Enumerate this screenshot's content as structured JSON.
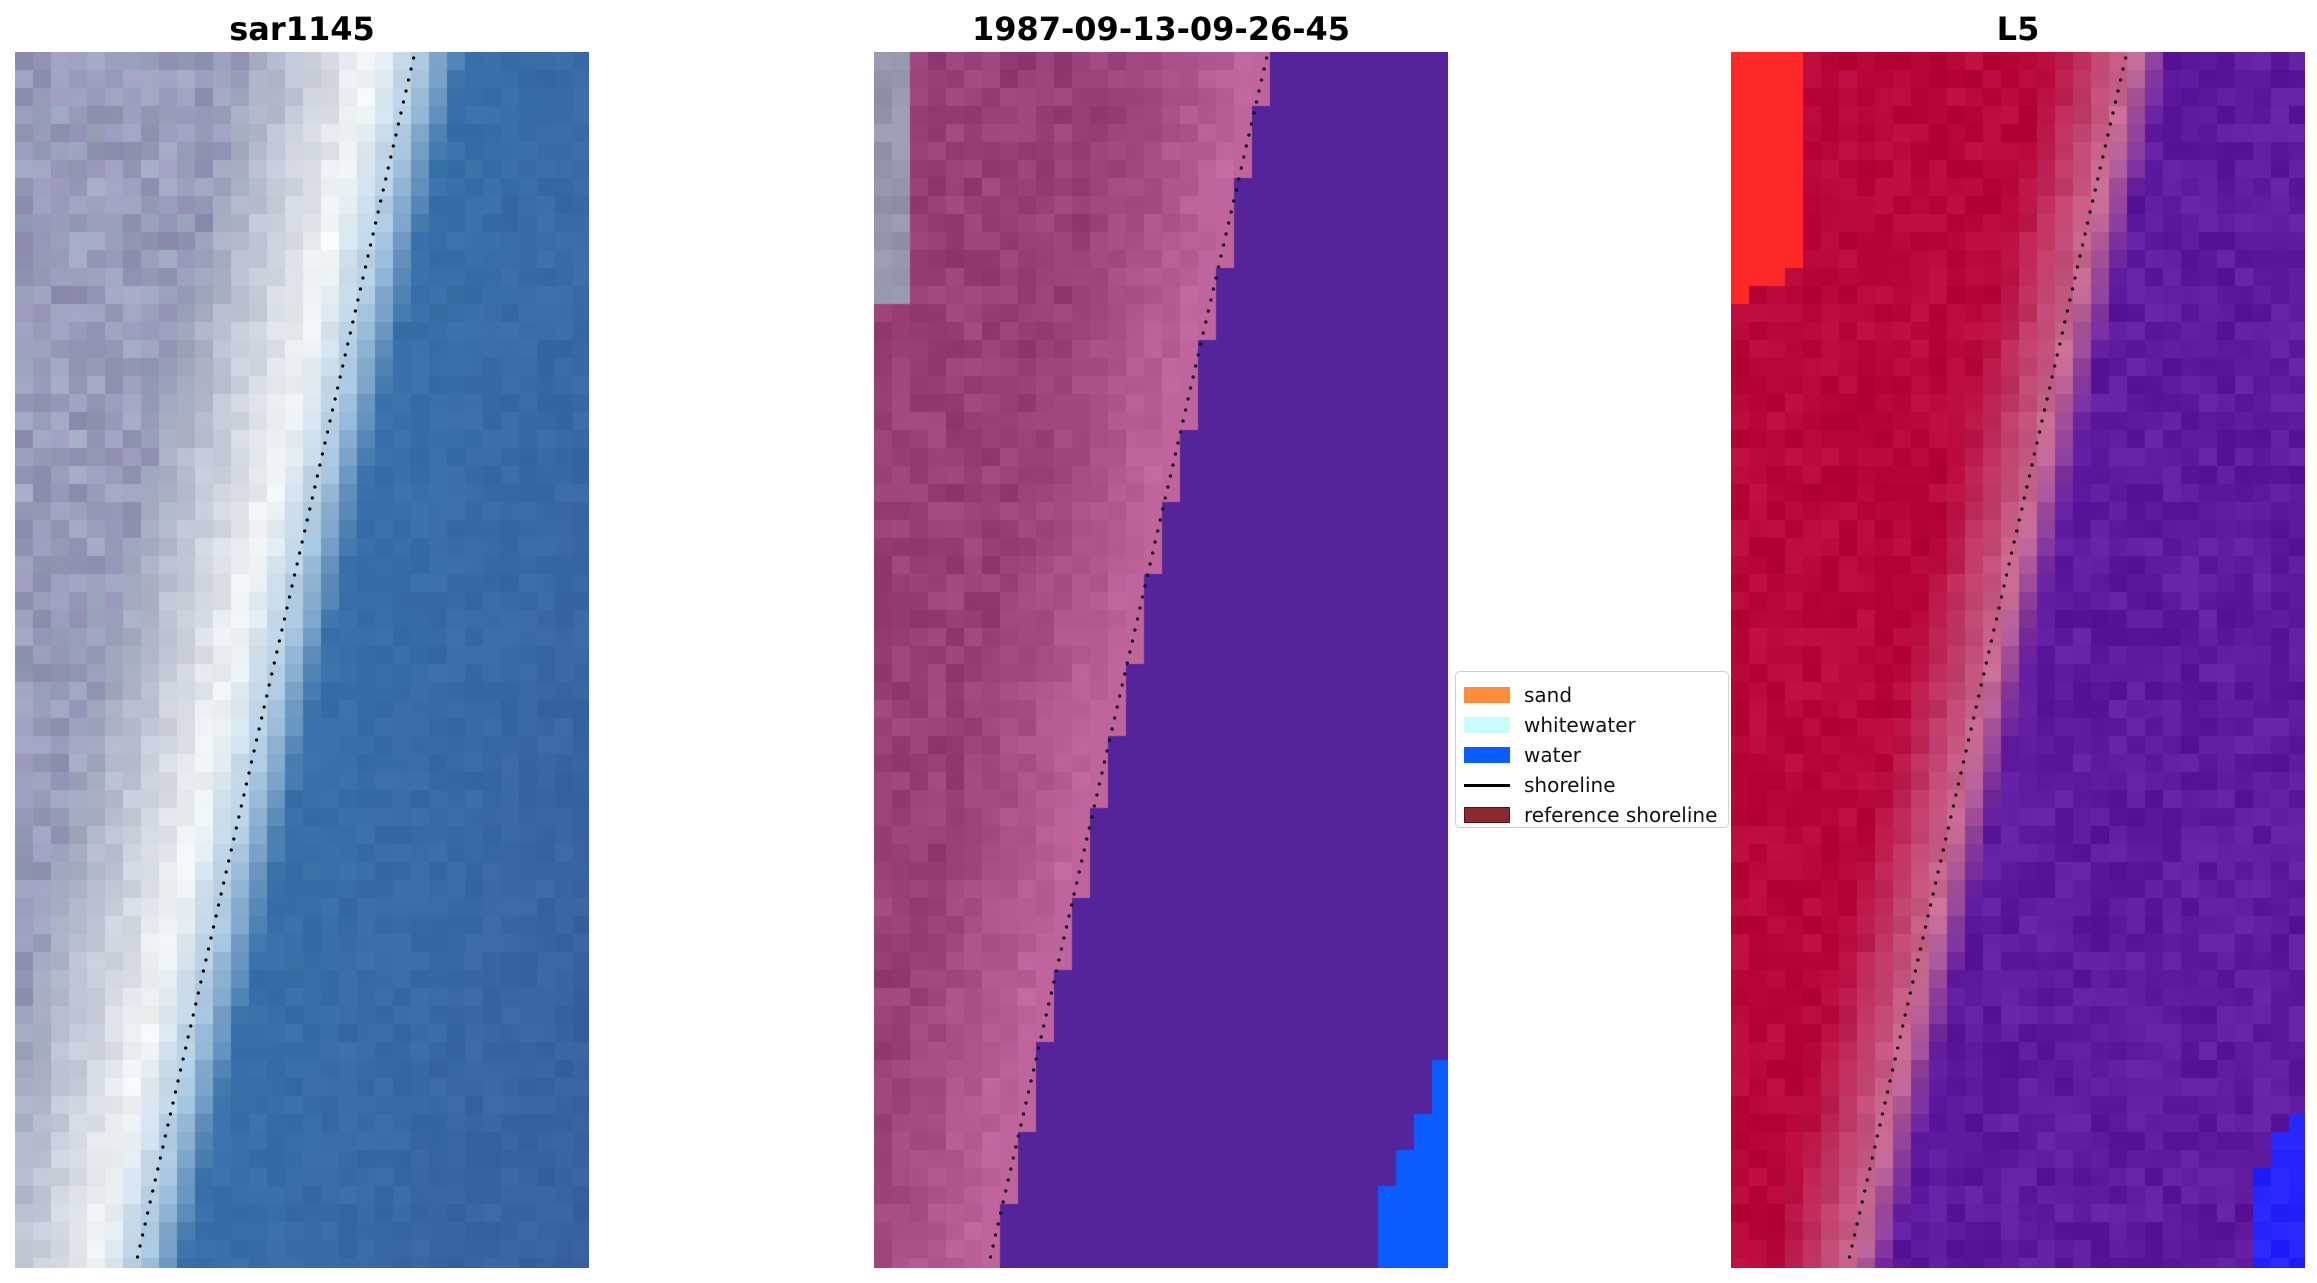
{
  "panels": [
    {
      "title": "sar1145",
      "image": "rgb satellite image of beach: sand, white surf band, blue ocean"
    },
    {
      "title": "1987-09-13-09-26-45",
      "image": "classified image: pink land band, purple water region, blue corner"
    },
    {
      "title": "L5",
      "image": "index image: red land grading to purple water"
    }
  ],
  "legend": {
    "items": [
      {
        "label": "sand",
        "type": "patch",
        "color": "#ff8c3a"
      },
      {
        "label": "whitewater",
        "type": "patch",
        "color": "#c9fcfc"
      },
      {
        "label": "water",
        "type": "patch",
        "color": "#0a5cff"
      },
      {
        "label": "shoreline",
        "type": "line",
        "color": "#000000"
      },
      {
        "label": "reference shoreline",
        "type": "patch",
        "color": "#8b2a2e"
      }
    ]
  },
  "colors": {
    "ocean": "#3a72aa",
    "surf": "#f2f6f7",
    "land_gray": "#9aa2bb",
    "class_land": "#9a3f78",
    "class_sand": "#c0649e",
    "class_water": "#55249a",
    "class_blue": "#0a5cff",
    "index_red": "#b8083a",
    "index_purple": "#5f1aa0",
    "index_blue": "#2424ff"
  }
}
